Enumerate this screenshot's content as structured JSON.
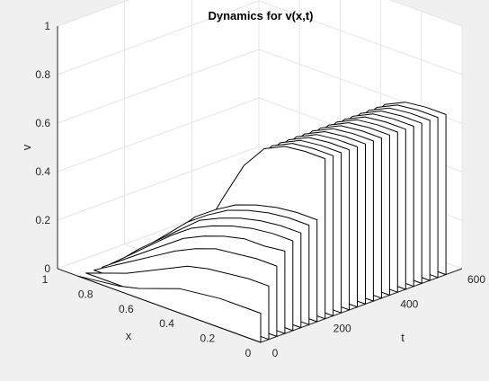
{
  "chart_data": {
    "type": "line",
    "view": "3d-waterfall",
    "title": "Dynamics for v(x,t)",
    "xlabel": "x",
    "ylabel": "t",
    "zlabel": "v",
    "xlim": [
      0,
      1
    ],
    "ylim": [
      0,
      600
    ],
    "zlim": [
      0,
      1
    ],
    "x_ticks": [
      "0",
      "0.2",
      "0.4",
      "0.6",
      "0.8",
      "1"
    ],
    "t_ticks": [
      "0",
      "200",
      "400",
      "600"
    ],
    "v_ticks": [
      "0",
      "0.2",
      "0.4",
      "0.6",
      "0.8",
      "1"
    ],
    "grid": true,
    "profile_x": [
      0.9,
      0.8,
      0.7,
      0.6,
      0.5,
      0.4,
      0.3,
      0.2,
      0.1,
      0.0
    ],
    "series": [
      {
        "t": 0,
        "v": [
          0.0,
          0.01,
          0.02,
          0.04,
          0.07,
          0.1,
          0.11,
          0.12,
          0.12,
          0.12
        ]
      },
      {
        "t": 24,
        "v": [
          0.0,
          0.03,
          0.06,
          0.1,
          0.14,
          0.18,
          0.2,
          0.21,
          0.22,
          0.22
        ]
      },
      {
        "t": 48,
        "v": [
          0.0,
          0.05,
          0.1,
          0.15,
          0.2,
          0.24,
          0.27,
          0.28,
          0.29,
          0.29
        ]
      },
      {
        "t": 72,
        "v": [
          0.0,
          0.06,
          0.12,
          0.18,
          0.24,
          0.28,
          0.31,
          0.33,
          0.33,
          0.34
        ]
      },
      {
        "t": 96,
        "v": [
          0.0,
          0.07,
          0.14,
          0.21,
          0.27,
          0.31,
          0.34,
          0.36,
          0.37,
          0.37
        ]
      },
      {
        "t": 120,
        "v": [
          0.0,
          0.08,
          0.15,
          0.22,
          0.29,
          0.33,
          0.36,
          0.38,
          0.39,
          0.39
        ]
      },
      {
        "t": 144,
        "v": [
          0.0,
          0.08,
          0.16,
          0.24,
          0.3,
          0.35,
          0.38,
          0.4,
          0.41,
          0.41
        ]
      },
      {
        "t": 168,
        "v": [
          0.0,
          0.08,
          0.16,
          0.25,
          0.31,
          0.36,
          0.39,
          0.41,
          0.42,
          0.42
        ]
      },
      {
        "t": 192,
        "v": [
          0.0,
          0.02,
          0.07,
          0.18,
          0.35,
          0.51,
          0.61,
          0.65,
          0.66,
          0.66
        ]
      },
      {
        "t": 216,
        "v": [
          0.0,
          0.02,
          0.07,
          0.18,
          0.35,
          0.51,
          0.61,
          0.65,
          0.66,
          0.66
        ]
      },
      {
        "t": 240,
        "v": [
          0.0,
          0.02,
          0.07,
          0.18,
          0.35,
          0.51,
          0.61,
          0.65,
          0.66,
          0.66
        ]
      },
      {
        "t": 264,
        "v": [
          0.0,
          0.02,
          0.07,
          0.18,
          0.35,
          0.51,
          0.61,
          0.65,
          0.66,
          0.66
        ]
      },
      {
        "t": 288,
        "v": [
          0.0,
          0.02,
          0.07,
          0.18,
          0.35,
          0.51,
          0.61,
          0.65,
          0.66,
          0.66
        ]
      },
      {
        "t": 312,
        "v": [
          0.0,
          0.02,
          0.07,
          0.18,
          0.35,
          0.51,
          0.61,
          0.65,
          0.66,
          0.66
        ]
      },
      {
        "t": 336,
        "v": [
          0.0,
          0.02,
          0.07,
          0.18,
          0.35,
          0.51,
          0.61,
          0.65,
          0.66,
          0.66
        ]
      },
      {
        "t": 360,
        "v": [
          0.0,
          0.02,
          0.07,
          0.18,
          0.35,
          0.51,
          0.61,
          0.65,
          0.66,
          0.66
        ]
      },
      {
        "t": 384,
        "v": [
          0.0,
          0.02,
          0.07,
          0.18,
          0.35,
          0.51,
          0.61,
          0.65,
          0.66,
          0.66
        ]
      },
      {
        "t": 408,
        "v": [
          0.0,
          0.02,
          0.07,
          0.18,
          0.35,
          0.51,
          0.61,
          0.65,
          0.66,
          0.66
        ]
      },
      {
        "t": 432,
        "v": [
          0.0,
          0.02,
          0.07,
          0.18,
          0.35,
          0.51,
          0.61,
          0.65,
          0.66,
          0.66
        ]
      },
      {
        "t": 456,
        "v": [
          0.0,
          0.02,
          0.07,
          0.18,
          0.35,
          0.51,
          0.61,
          0.65,
          0.66,
          0.66
        ]
      },
      {
        "t": 480,
        "v": [
          0.0,
          0.02,
          0.07,
          0.18,
          0.35,
          0.51,
          0.61,
          0.65,
          0.66,
          0.66
        ]
      },
      {
        "t": 504,
        "v": [
          0.0,
          0.02,
          0.07,
          0.18,
          0.35,
          0.51,
          0.61,
          0.65,
          0.66,
          0.66
        ]
      },
      {
        "t": 528,
        "v": [
          0.0,
          0.02,
          0.07,
          0.18,
          0.35,
          0.51,
          0.61,
          0.65,
          0.66,
          0.66
        ]
      },
      {
        "t": 552,
        "v": [
          0.0,
          0.02,
          0.07,
          0.18,
          0.35,
          0.51,
          0.61,
          0.65,
          0.66,
          0.66
        ]
      }
    ],
    "colors": {
      "figure_background": "#f0f0f0",
      "axes_background": "#ffffff",
      "grid": "#e6e6e6",
      "axis_line": "#262626",
      "curve_line": "#000000",
      "curve_fill": "#ffffff",
      "text": "#262626"
    }
  }
}
